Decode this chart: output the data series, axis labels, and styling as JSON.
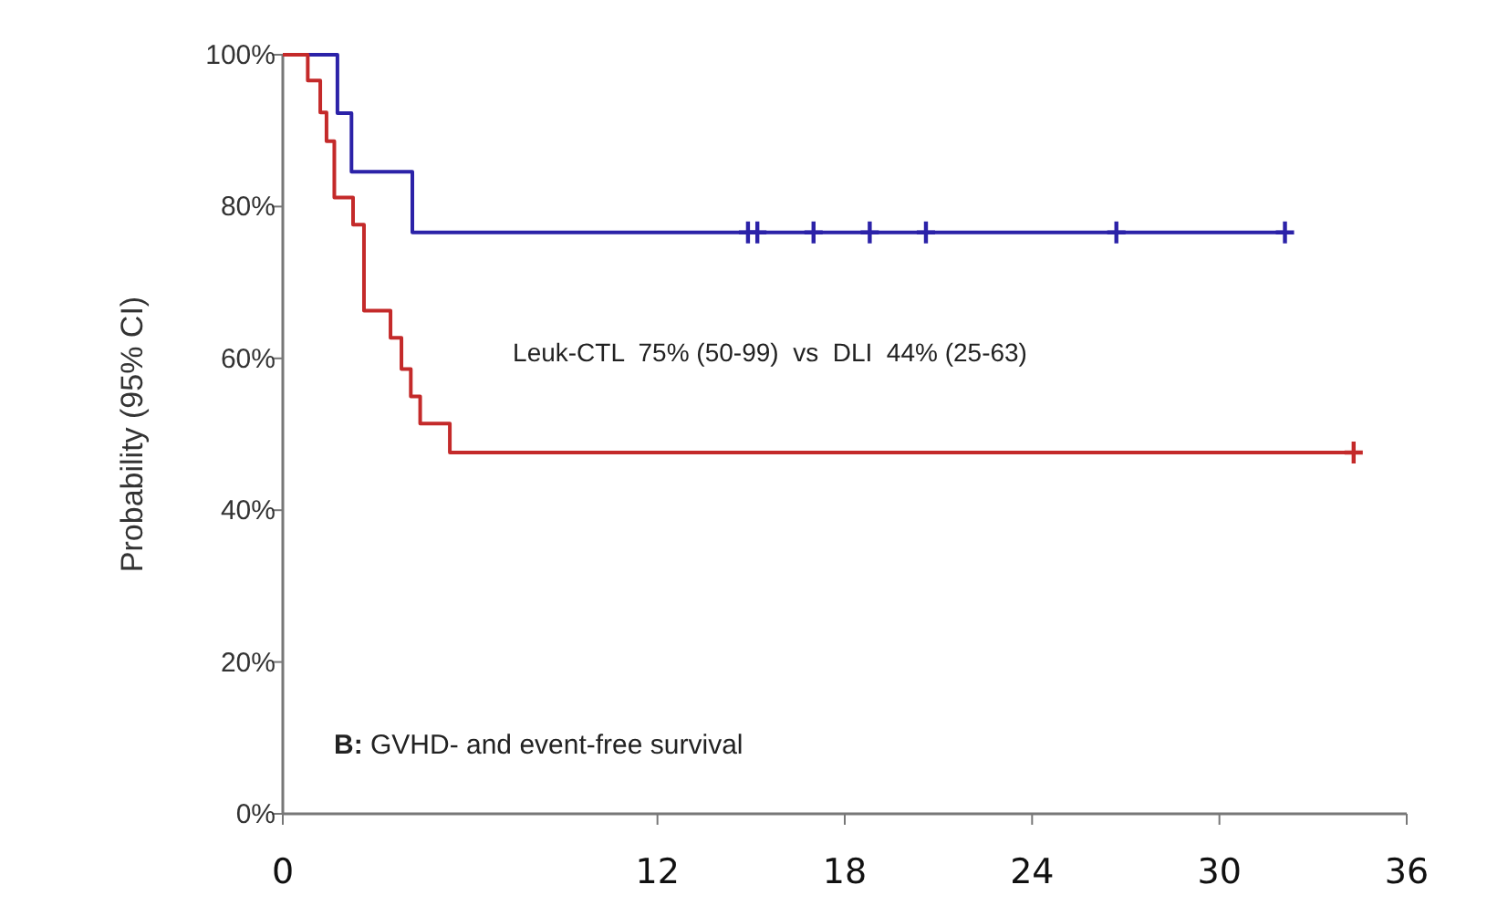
{
  "chart_data": {
    "type": "step",
    "ylabel": "Probability (95% CI)",
    "annotations": [
      "Leuk-CTL  75% (50-99)  vs  DLI  44% (25-63)",
      "B: GVHD- and event-free survival"
    ],
    "xlim": [
      0,
      36
    ],
    "xticks": [
      0,
      12,
      18,
      24,
      30,
      36
    ],
    "ylim": [
      0,
      100
    ],
    "yticks": [
      {
        "value": 0,
        "label": "0%"
      },
      {
        "value": 20,
        "label": "20%"
      },
      {
        "value": 40,
        "label": "40%"
      },
      {
        "value": 60,
        "label": "60%"
      },
      {
        "value": 80,
        "label": "80%"
      },
      {
        "value": 100,
        "label": "100%"
      }
    ],
    "grid": false,
    "series": [
      {
        "color": "#2b22a8",
        "x": [
          0,
          1.75,
          2.2,
          4.15,
          32.1
        ],
        "values": [
          100,
          92.3,
          84.6,
          76.6,
          76.6
        ]
      },
      {
        "color": "#c42a2a",
        "x": [
          0,
          0.8,
          1.2,
          1.4,
          1.65,
          2.25,
          2.6,
          3.45,
          3.8,
          4.1,
          4.4,
          5.35,
          34.3
        ],
        "values": [
          100,
          96.6,
          92.4,
          88.6,
          81.2,
          77.6,
          66.3,
          62.7,
          58.6,
          55.0,
          51.4,
          47.6,
          47.6
        ]
      },
      {
        "type": "scatter",
        "marker": "cross",
        "color": "#2b22a8",
        "x": [
          14.9,
          15.2,
          17.0,
          18.8,
          20.6,
          26.7,
          32.1
        ],
        "values": [
          76.6,
          76.6,
          76.6,
          76.6,
          76.6,
          76.6,
          76.6
        ]
      },
      {
        "type": "scatter",
        "marker": "cross",
        "color": "#c42a2a",
        "x": [
          34.3
        ],
        "values": [
          47.6
        ]
      }
    ]
  }
}
